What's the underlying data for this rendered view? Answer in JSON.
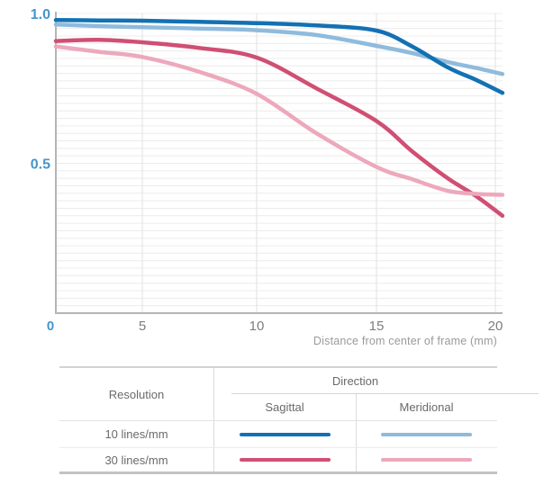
{
  "chart_data": {
    "type": "line",
    "title": "",
    "xlabel": "Distance from center of frame (mm)",
    "ylabel": "",
    "xlim": [
      0,
      20.3
    ],
    "ylim": [
      0,
      1.0
    ],
    "x_ticks": [
      0,
      5,
      10,
      15,
      20
    ],
    "y_ticks": [
      1.0,
      0.5
    ],
    "y_tick_labels": [
      "1.0",
      "0.5"
    ],
    "origin_label": "0",
    "grid": {
      "horizontal_step": 0.025,
      "vertical_at_ticks": true,
      "legend_position": "table-below"
    },
    "x": [
      0,
      2.5,
      5,
      7.5,
      10,
      12.5,
      15,
      16.5,
      18,
      19.2,
      20.3
    ],
    "series": [
      {
        "name": "10 lines/mm Sagittal",
        "color": "#1371b3",
        "values": [
          0.978,
          0.977,
          0.976,
          0.972,
          0.968,
          0.96,
          0.943,
          0.89,
          0.82,
          0.778,
          0.735
        ]
      },
      {
        "name": "10 lines/mm Meridional",
        "color": "#8fbbdc",
        "values": [
          0.963,
          0.958,
          0.954,
          0.95,
          0.944,
          0.928,
          0.892,
          0.868,
          0.838,
          0.818,
          0.798
        ]
      },
      {
        "name": "30 lines/mm Sagittal",
        "color": "#d04f73",
        "values": [
          0.908,
          0.912,
          0.904,
          0.885,
          0.853,
          0.75,
          0.641,
          0.54,
          0.45,
          0.39,
          0.325
        ]
      },
      {
        "name": "30 lines/mm Meridional",
        "color": "#eda8bc",
        "values": [
          0.89,
          0.872,
          0.855,
          0.805,
          0.732,
          0.6,
          0.488,
          0.447,
          0.408,
          0.398,
          0.395
        ]
      }
    ],
    "colors": {
      "y_axis_label": "#4595cc",
      "x_tick_label": "#7d7d7d",
      "axis_line": "#b5b5b5",
      "h_gridline": "#ececec",
      "v_gridline": "#e2e2e2",
      "caption": "#9a9a9a"
    }
  },
  "legend_table": {
    "resolution_header": "Resolution",
    "direction_header": "Direction",
    "sagittal_header": "Sagittal",
    "meridional_header": "Meridional",
    "rows": [
      {
        "label": "10 lines/mm",
        "sagittal_series": 0,
        "meridional_series": 1
      },
      {
        "label": "30 lines/mm",
        "sagittal_series": 2,
        "meridional_series": 3
      }
    ]
  }
}
